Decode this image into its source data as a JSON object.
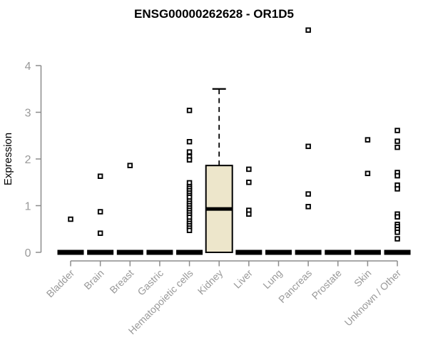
{
  "chart_data": {
    "type": "boxplot",
    "title": "ENSG00000262628 - OR1D5",
    "xlabel": "",
    "ylabel": "Expression",
    "ylim": [
      0,
      4
    ],
    "yticks": [
      0,
      1,
      2,
      3,
      4
    ],
    "grid": false,
    "legend": "none",
    "categories": [
      "Bladder",
      "Brain",
      "Breast",
      "Gastric",
      "Hematopoietic cells",
      "Kidney",
      "Liver",
      "Lung",
      "Pancreas",
      "Prostate",
      "Skin",
      "Unknown / Other"
    ],
    "series": [
      {
        "label": "Bladder",
        "q1": 0,
        "median": 0,
        "q3": 0,
        "whisker_low": 0,
        "whisker_high": 0,
        "outliers": [
          0.71
        ]
      },
      {
        "label": "Brain",
        "q1": 0,
        "median": 0,
        "q3": 0,
        "whisker_low": 0,
        "whisker_high": 0,
        "outliers": [
          1.63,
          0.87,
          0.41
        ]
      },
      {
        "label": "Breast",
        "q1": 0,
        "median": 0,
        "q3": 0,
        "whisker_low": 0,
        "whisker_high": 0,
        "outliers": [
          1.86
        ]
      },
      {
        "label": "Gastric",
        "q1": 0,
        "median": 0,
        "q3": 0,
        "whisker_low": 0,
        "whisker_high": 0,
        "outliers": []
      },
      {
        "label": "Hematopoietic cells",
        "q1": 0,
        "median": 0,
        "q3": 0,
        "whisker_low": 0,
        "whisker_high": 0,
        "outliers": [
          3.04,
          2.37,
          2.15,
          2.05,
          1.98,
          1.49,
          1.41,
          1.37,
          1.32,
          1.27,
          1.22,
          1.18,
          1.1,
          1.05,
          1.0,
          0.95,
          0.9,
          0.85,
          0.8,
          0.75,
          0.67,
          0.62,
          0.57,
          0.52,
          0.47
        ]
      },
      {
        "label": "Kidney",
        "q1": 0,
        "median": 0.93,
        "q3": 1.86,
        "whisker_low": 0,
        "whisker_high": 3.5,
        "outliers": []
      },
      {
        "label": "Liver",
        "q1": 0,
        "median": 0,
        "q3": 0,
        "whisker_low": 0,
        "whisker_high": 0,
        "outliers": [
          1.78,
          1.5,
          0.9,
          0.82
        ]
      },
      {
        "label": "Lung",
        "q1": 0,
        "median": 0,
        "q3": 0,
        "whisker_low": 0,
        "whisker_high": 0,
        "outliers": []
      },
      {
        "label": "Pancreas",
        "q1": 0,
        "median": 0,
        "q3": 0,
        "whisker_low": 0,
        "whisker_high": 0,
        "outliers": [
          4.76,
          2.27,
          1.25,
          0.98
        ]
      },
      {
        "label": "Prostate",
        "q1": 0,
        "median": 0,
        "q3": 0,
        "whisker_low": 0,
        "whisker_high": 0,
        "outliers": []
      },
      {
        "label": "Skin",
        "q1": 0,
        "median": 0,
        "q3": 0,
        "whisker_low": 0,
        "whisker_high": 0,
        "outliers": [
          2.41,
          1.69
        ]
      },
      {
        "label": "Unknown / Other",
        "q1": 0,
        "median": 0,
        "q3": 0,
        "whisker_low": 0,
        "whisker_high": 0,
        "outliers": [
          2.61,
          2.38,
          2.25,
          1.71,
          1.64,
          1.44,
          1.36,
          0.82,
          0.76,
          0.6,
          0.55,
          0.49,
          0.43,
          0.29
        ]
      }
    ],
    "colors": {
      "box_fill": "#EDE6CB",
      "box_stroke": "#000000",
      "median": "#000000",
      "whisker": "#000000",
      "point": "#000000",
      "axis": "#8C8C8C",
      "tick_label": "#999999",
      "title": "#000000",
      "background": "#FFFFFF"
    }
  }
}
